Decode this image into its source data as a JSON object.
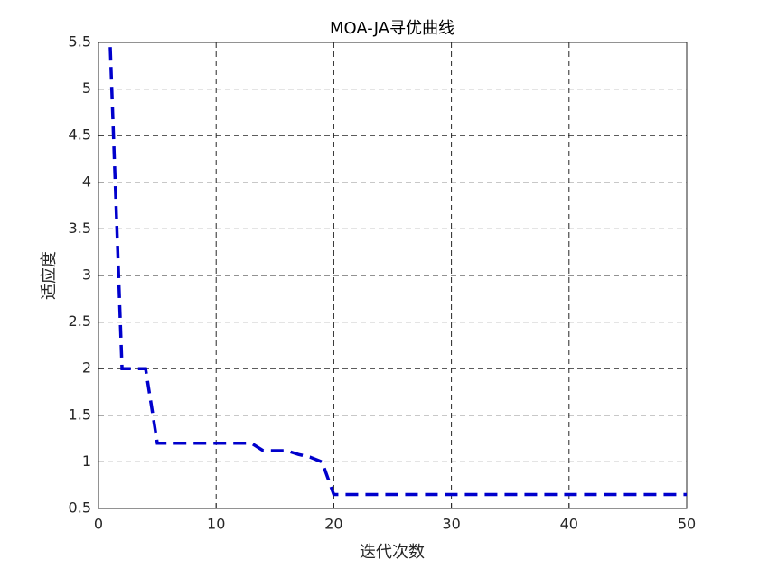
{
  "chart_data": {
    "type": "line",
    "title": "MOA-JA寻优曲线",
    "x_label": "迭代次数",
    "y_label": "适应度",
    "x": [
      1,
      2,
      3,
      4,
      5,
      6,
      7,
      8,
      9,
      10,
      11,
      12,
      13,
      14,
      15,
      16,
      17,
      18,
      19,
      20,
      21,
      22,
      23,
      24,
      25,
      26,
      27,
      28,
      29,
      30,
      31,
      32,
      33,
      34,
      35,
      36,
      37,
      38,
      39,
      40,
      41,
      42,
      43,
      44,
      45,
      46,
      47,
      48,
      49,
      50
    ],
    "series": [
      {
        "color": "#0000cc",
        "values": [
          5.45,
          2,
          2,
          2,
          1.2,
          1.2,
          1.2,
          1.2,
          1.2,
          1.2,
          1.2,
          1.2,
          1.2,
          1.12,
          1.12,
          1.12,
          1.08,
          1.05,
          1,
          0.65,
          0.65,
          0.65,
          0.65,
          0.65,
          0.65,
          0.65,
          0.65,
          0.65,
          0.65,
          0.65,
          0.65,
          0.65,
          0.65,
          0.65,
          0.65,
          0.65,
          0.65,
          0.65,
          0.65,
          0.65,
          0.65,
          0.65,
          0.65,
          0.65,
          0.65,
          0.65,
          0.65,
          0.65,
          0.65,
          0.65
        ]
      }
    ],
    "xlim": [
      0,
      50
    ],
    "xticks": [
      0,
      10,
      20,
      30,
      40,
      50
    ],
    "ylim": [
      0.5,
      5.5
    ],
    "yticks": [
      0.5,
      1,
      1.5,
      2,
      2.5,
      3,
      3.5,
      4,
      4.5,
      5,
      5.5
    ],
    "grid": true
  }
}
